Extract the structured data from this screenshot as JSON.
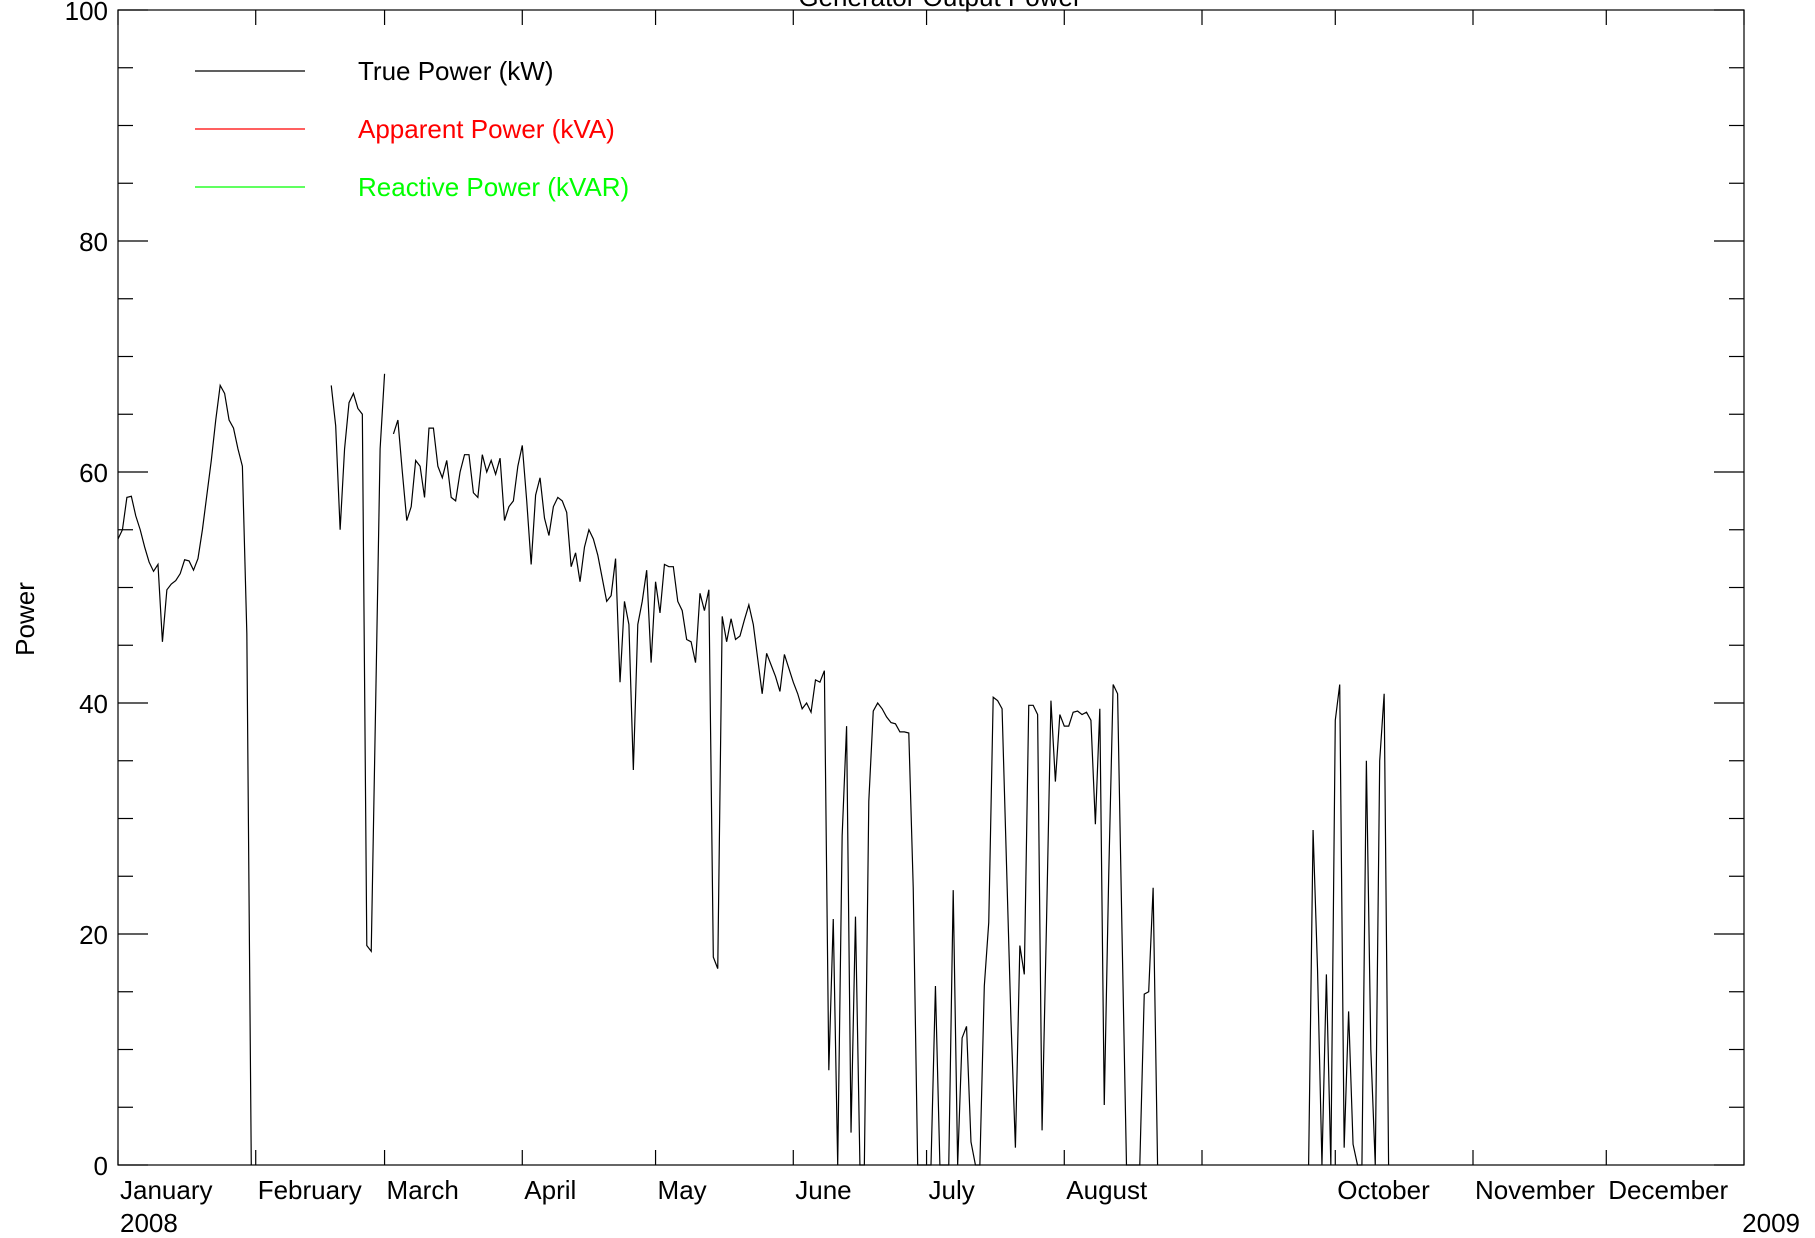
{
  "chart_data": {
    "type": "line",
    "title": "Generator Output Power",
    "xlabel": "",
    "ylabel": "Power",
    "ylim": [
      0,
      100
    ],
    "xlim": [
      "2008-01-01",
      "2009-01-01"
    ],
    "x_ticks": [
      "2008-01-01",
      "2008-02-01",
      "2008-03-01",
      "2008-04-01",
      "2008-05-01",
      "2008-06-01",
      "2008-07-01",
      "2008-08-01",
      "2008-09-01",
      "2008-10-01",
      "2008-11-01",
      "2008-12-01",
      "2009-01-01"
    ],
    "x_tick_labels": [
      "January",
      "February",
      "March",
      "April",
      "May",
      "June",
      "July",
      "August",
      "",
      "October",
      "November",
      "December",
      ""
    ],
    "x_year_labels": [
      {
        "date": "2008-01-01",
        "label": "2008"
      },
      {
        "date": "2009-01-01",
        "label": "2009"
      }
    ],
    "y_ticks": [
      0,
      20,
      40,
      60,
      80,
      100
    ],
    "y_tick_labels": [
      "0",
      "20",
      "40",
      "60",
      "80",
      "100"
    ],
    "grid": false,
    "legend": {
      "position": "top-left"
    },
    "series": [
      {
        "name": "True Power (kW)",
        "color": "#000000",
        "points": [
          [
            "2008-01-01",
            54.2
          ],
          [
            "2008-01-02",
            55
          ],
          [
            "2008-01-03",
            57.8
          ],
          [
            "2008-01-04",
            57.9
          ],
          [
            "2008-01-05",
            56.2
          ],
          [
            "2008-01-06",
            55
          ],
          [
            "2008-01-07",
            53.5
          ],
          [
            "2008-01-08",
            52.2
          ],
          [
            "2008-01-09",
            51.4
          ],
          [
            "2008-01-10",
            52
          ],
          [
            "2008-01-11",
            45.3
          ],
          [
            "2008-01-12",
            49.8
          ],
          [
            "2008-01-13",
            50.3
          ],
          [
            "2008-01-14",
            50.6
          ],
          [
            "2008-01-15",
            51.2
          ],
          [
            "2008-01-16",
            52.4
          ],
          [
            "2008-01-17",
            52.3
          ],
          [
            "2008-01-18",
            51.5
          ],
          [
            "2008-01-19",
            52.5
          ],
          [
            "2008-01-20",
            55
          ],
          [
            "2008-01-21",
            58
          ],
          [
            "2008-01-22",
            61
          ],
          [
            "2008-01-23",
            64.5
          ],
          [
            "2008-01-24",
            67.5
          ],
          [
            "2008-01-25",
            66.8
          ],
          [
            "2008-01-26",
            64.5
          ],
          [
            "2008-01-27",
            63.8
          ],
          [
            "2008-01-28",
            62
          ],
          [
            "2008-01-29",
            60.5
          ],
          [
            "2008-01-30",
            46
          ],
          [
            "2008-01-31",
            0
          ],
          [
            "2008-02-15",
            0
          ],
          [
            "2008-02-18",
            67.5
          ],
          [
            "2008-02-19",
            64
          ],
          [
            "2008-02-20",
            55
          ],
          [
            "2008-02-21",
            62
          ],
          [
            "2008-02-22",
            66
          ],
          [
            "2008-02-23",
            66.8
          ],
          [
            "2008-02-24",
            65.5
          ],
          [
            "2008-02-25",
            65
          ],
          [
            "2008-02-26",
            19
          ],
          [
            "2008-02-27",
            18.5
          ],
          [
            "2008-02-28",
            40
          ],
          [
            "2008-02-29",
            62
          ],
          [
            "2008-03-01",
            68.5
          ],
          [
            "2008-03-03",
            63.3
          ],
          [
            "2008-03-04",
            64.5
          ],
          [
            "2008-03-05",
            60
          ],
          [
            "2008-03-06",
            55.8
          ],
          [
            "2008-03-07",
            57
          ],
          [
            "2008-03-08",
            61
          ],
          [
            "2008-03-09",
            60.5
          ],
          [
            "2008-03-10",
            57.8
          ],
          [
            "2008-03-11",
            63.8
          ],
          [
            "2008-03-12",
            63.8
          ],
          [
            "2008-03-13",
            60.5
          ],
          [
            "2008-03-14",
            59.5
          ],
          [
            "2008-03-15",
            61
          ],
          [
            "2008-03-16",
            57.8
          ],
          [
            "2008-03-17",
            57.5
          ],
          [
            "2008-03-18",
            60
          ],
          [
            "2008-03-19",
            61.5
          ],
          [
            "2008-03-20",
            61.5
          ],
          [
            "2008-03-21",
            58.2
          ],
          [
            "2008-03-22",
            57.8
          ],
          [
            "2008-03-23",
            61.5
          ],
          [
            "2008-03-24",
            60
          ],
          [
            "2008-03-25",
            61
          ],
          [
            "2008-03-26",
            59.8
          ],
          [
            "2008-03-27",
            61.2
          ],
          [
            "2008-03-28",
            55.8
          ],
          [
            "2008-03-29",
            57
          ],
          [
            "2008-03-30",
            57.5
          ],
          [
            "2008-03-31",
            60.5
          ],
          [
            "2008-04-01",
            62.3
          ],
          [
            "2008-04-02",
            57.5
          ],
          [
            "2008-04-03",
            52
          ],
          [
            "2008-04-04",
            58
          ],
          [
            "2008-04-05",
            59.5
          ],
          [
            "2008-04-06",
            56
          ],
          [
            "2008-04-07",
            54.5
          ],
          [
            "2008-04-08",
            57
          ],
          [
            "2008-04-09",
            57.8
          ],
          [
            "2008-04-10",
            57.5
          ],
          [
            "2008-04-11",
            56.5
          ],
          [
            "2008-04-12",
            51.8
          ],
          [
            "2008-04-13",
            53
          ],
          [
            "2008-04-14",
            50.5
          ],
          [
            "2008-04-15",
            53.5
          ],
          [
            "2008-04-16",
            55
          ],
          [
            "2008-04-17",
            54.2
          ],
          [
            "2008-04-18",
            52.8
          ],
          [
            "2008-04-19",
            50.8
          ],
          [
            "2008-04-20",
            48.8
          ],
          [
            "2008-04-21",
            49.3
          ],
          [
            "2008-04-22",
            52.5
          ],
          [
            "2008-04-23",
            41.8
          ],
          [
            "2008-04-24",
            48.8
          ],
          [
            "2008-04-25",
            46.8
          ],
          [
            "2008-04-26",
            34.2
          ],
          [
            "2008-04-27",
            46.8
          ],
          [
            "2008-04-28",
            48.8
          ],
          [
            "2008-04-29",
            51.5
          ],
          [
            "2008-04-30",
            43.5
          ],
          [
            "2008-05-01",
            50.5
          ],
          [
            "2008-05-02",
            47.8
          ],
          [
            "2008-05-03",
            52
          ],
          [
            "2008-05-04",
            51.8
          ],
          [
            "2008-05-05",
            51.8
          ],
          [
            "2008-05-06",
            48.8
          ],
          [
            "2008-05-07",
            48
          ],
          [
            "2008-05-08",
            45.5
          ],
          [
            "2008-05-09",
            45.3
          ],
          [
            "2008-05-10",
            43.5
          ],
          [
            "2008-05-11",
            49.5
          ],
          [
            "2008-05-12",
            48
          ],
          [
            "2008-05-13",
            49.8
          ],
          [
            "2008-05-14",
            18
          ],
          [
            "2008-05-15",
            17
          ],
          [
            "2008-05-16",
            47.5
          ],
          [
            "2008-05-17",
            45.3
          ],
          [
            "2008-05-18",
            47.3
          ],
          [
            "2008-05-19",
            45.5
          ],
          [
            "2008-05-20",
            45.8
          ],
          [
            "2008-05-21",
            47.2
          ],
          [
            "2008-05-22",
            48.5
          ],
          [
            "2008-05-23",
            46.8
          ],
          [
            "2008-05-24",
            43.8
          ],
          [
            "2008-05-25",
            40.8
          ],
          [
            "2008-05-26",
            44.3
          ],
          [
            "2008-05-27",
            43.3
          ],
          [
            "2008-05-28",
            42.3
          ],
          [
            "2008-05-29",
            41
          ],
          [
            "2008-05-30",
            44.2
          ],
          [
            "2008-05-31",
            43
          ],
          [
            "2008-06-01",
            41.8
          ],
          [
            "2008-06-02",
            40.8
          ],
          [
            "2008-06-03",
            39.5
          ],
          [
            "2008-06-04",
            40
          ],
          [
            "2008-06-05",
            39.2
          ],
          [
            "2008-06-06",
            42
          ],
          [
            "2008-06-07",
            41.8
          ],
          [
            "2008-06-08",
            42.8
          ],
          [
            "2008-06-09",
            8.2
          ],
          [
            "2008-06-10",
            21.3
          ],
          [
            "2008-06-11",
            0
          ],
          [
            "2008-06-12",
            28.5
          ],
          [
            "2008-06-13",
            38
          ],
          [
            "2008-06-14",
            2.8
          ],
          [
            "2008-06-15",
            21.5
          ],
          [
            "2008-06-16",
            0
          ],
          [
            "2008-06-17",
            0
          ],
          [
            "2008-06-18",
            31.5
          ],
          [
            "2008-06-19",
            39.3
          ],
          [
            "2008-06-20",
            40
          ],
          [
            "2008-06-21",
            39.5
          ],
          [
            "2008-06-22",
            38.8
          ],
          [
            "2008-06-23",
            38.3
          ],
          [
            "2008-06-24",
            38.2
          ],
          [
            "2008-06-25",
            37.5
          ],
          [
            "2008-06-26",
            37.5
          ],
          [
            "2008-06-27",
            37.4
          ],
          [
            "2008-06-28",
            24
          ],
          [
            "2008-06-29",
            0
          ],
          [
            "2008-06-30",
            0
          ],
          [
            "2008-07-01",
            0
          ],
          [
            "2008-07-02",
            0
          ],
          [
            "2008-07-03",
            15.5
          ],
          [
            "2008-07-04",
            0
          ],
          [
            "2008-07-05",
            0
          ],
          [
            "2008-07-06",
            0
          ],
          [
            "2008-07-07",
            23.8
          ],
          [
            "2008-07-08",
            0
          ],
          [
            "2008-07-09",
            11
          ],
          [
            "2008-07-10",
            12
          ],
          [
            "2008-07-11",
            2
          ],
          [
            "2008-07-12",
            0
          ],
          [
            "2008-07-13",
            0
          ],
          [
            "2008-07-14",
            15.5
          ],
          [
            "2008-07-15",
            21
          ],
          [
            "2008-07-16",
            40.5
          ],
          [
            "2008-07-17",
            40.2
          ],
          [
            "2008-07-18",
            39.5
          ],
          [
            "2008-07-19",
            26
          ],
          [
            "2008-07-20",
            12.5
          ],
          [
            "2008-07-21",
            1.5
          ],
          [
            "2008-07-22",
            19
          ],
          [
            "2008-07-23",
            16.5
          ],
          [
            "2008-07-24",
            39.8
          ],
          [
            "2008-07-25",
            39.8
          ],
          [
            "2008-07-26",
            39
          ],
          [
            "2008-07-27",
            3
          ],
          [
            "2008-07-28",
            21
          ],
          [
            "2008-07-29",
            40.2
          ],
          [
            "2008-07-30",
            33.2
          ],
          [
            "2008-07-31",
            39
          ],
          [
            "2008-08-01",
            38
          ],
          [
            "2008-08-02",
            38
          ],
          [
            "2008-08-03",
            39.2
          ],
          [
            "2008-08-04",
            39.3
          ],
          [
            "2008-08-05",
            39
          ],
          [
            "2008-08-06",
            39.2
          ],
          [
            "2008-08-07",
            38.5
          ],
          [
            "2008-08-08",
            29.5
          ],
          [
            "2008-08-09",
            39.5
          ],
          [
            "2008-08-10",
            5.2
          ],
          [
            "2008-08-11",
            25
          ],
          [
            "2008-08-12",
            41.6
          ],
          [
            "2008-08-13",
            40.8
          ],
          [
            "2008-08-14",
            20
          ],
          [
            "2008-08-15",
            0
          ],
          [
            "2008-08-16",
            0
          ],
          [
            "2008-08-17",
            0
          ],
          [
            "2008-08-18",
            0
          ],
          [
            "2008-08-19",
            14.8
          ],
          [
            "2008-08-20",
            15
          ],
          [
            "2008-08-21",
            24
          ],
          [
            "2008-08-22",
            0
          ],
          [
            "2008-09-25",
            0
          ],
          [
            "2008-09-26",
            29
          ],
          [
            "2008-09-27",
            17
          ],
          [
            "2008-09-28",
            0
          ],
          [
            "2008-09-29",
            16.5
          ],
          [
            "2008-09-30",
            0
          ],
          [
            "2008-10-01",
            38.5
          ],
          [
            "2008-10-02",
            41.6
          ],
          [
            "2008-10-03",
            1.5
          ],
          [
            "2008-10-04",
            13.3
          ],
          [
            "2008-10-05",
            1.8
          ],
          [
            "2008-10-06",
            0
          ],
          [
            "2008-10-07",
            0
          ],
          [
            "2008-10-08",
            35
          ],
          [
            "2008-10-09",
            10
          ],
          [
            "2008-10-10",
            0
          ],
          [
            "2008-10-11",
            35
          ],
          [
            "2008-10-12",
            40.8
          ],
          [
            "2008-10-13",
            0
          ],
          [
            "2008-11-01",
            0
          ],
          [
            "2008-12-01",
            0
          ],
          [
            "2008-12-31",
            0
          ]
        ]
      },
      {
        "name": "Apparent Power (kVA)",
        "color": "#ff0000",
        "points": []
      },
      {
        "name": "Reactive Power (kVAR)",
        "color": "#00ff00",
        "points": []
      }
    ]
  }
}
